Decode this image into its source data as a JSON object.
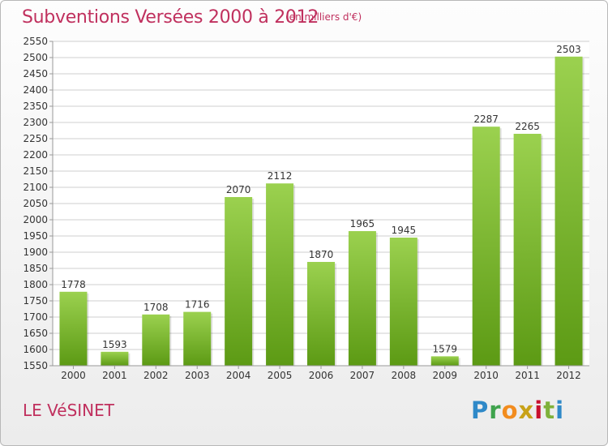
{
  "header": {
    "title": "Subventions Versées 2000 à 2012",
    "subtitle": "(en milliers d'€)"
  },
  "footer": {
    "city": "LE VéSINET",
    "brand": "Proxiti"
  },
  "colors": {
    "accent": "#c0305e",
    "bar_top": "#9bd14f",
    "bar_bottom": "#5c9a14",
    "grid": "#cfcfcf"
  },
  "chart_data": {
    "type": "bar",
    "title": "Subventions Versées 2000 à 2012",
    "subtitle": "(en milliers d'€)",
    "xlabel": "",
    "ylabel": "",
    "categories": [
      "2000",
      "2001",
      "2002",
      "2003",
      "2004",
      "2005",
      "2006",
      "2007",
      "2008",
      "2009",
      "2010",
      "2011",
      "2012"
    ],
    "values": [
      1778,
      1593,
      1708,
      1716,
      2070,
      2112,
      1870,
      1965,
      1945,
      1579,
      2287,
      2265,
      2503
    ],
    "ylim": [
      1550,
      2550
    ],
    "ytick_step": 50,
    "grid": true,
    "legend": "none"
  }
}
